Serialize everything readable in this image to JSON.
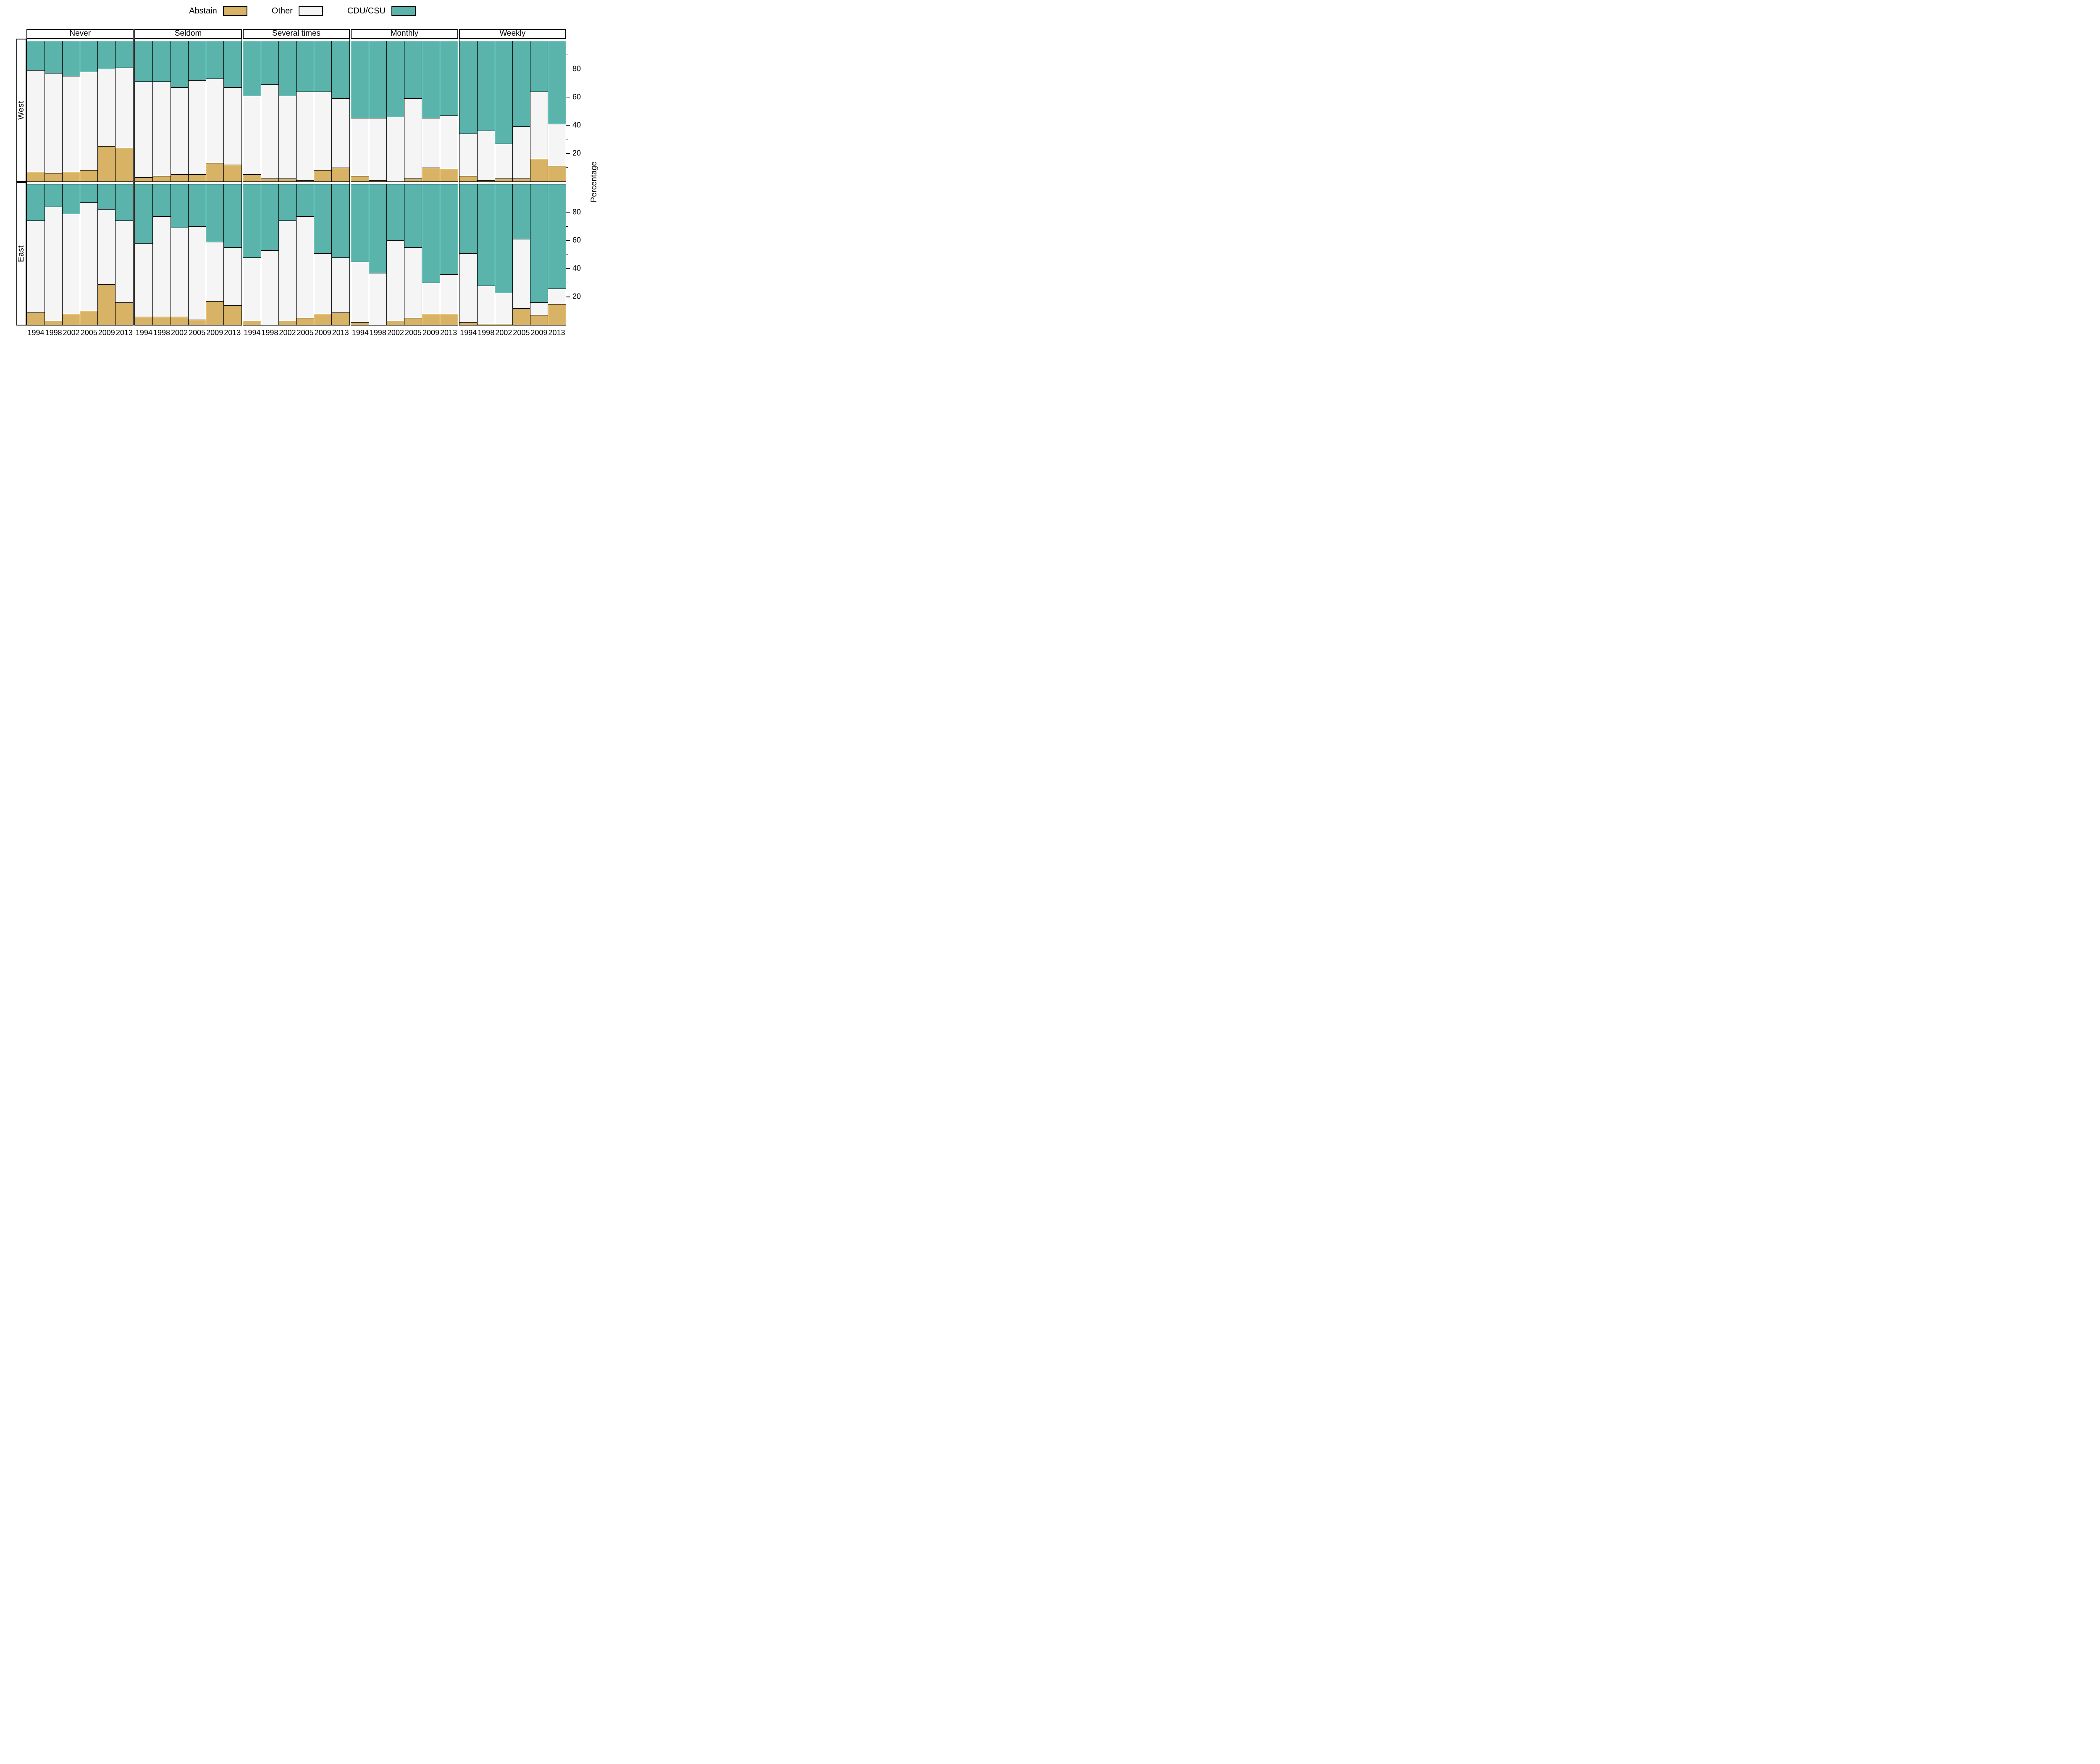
{
  "legend": {
    "items": [
      {
        "label": "Abstain",
        "color": "#d8b365"
      },
      {
        "label": "Other",
        "color": "#f5f5f5"
      },
      {
        "label": "CDU/CSU",
        "color": "#5ab4ac"
      }
    ]
  },
  "chart_data": {
    "type": "bar",
    "stacked": true,
    "unit": "percent",
    "title": "",
    "xlabel": "",
    "ylabel": "Percentage",
    "ylim": [
      0,
      100
    ],
    "yticks_major": [
      20,
      40,
      60,
      80
    ],
    "yticks_minor": [
      10,
      30,
      50,
      70,
      90
    ],
    "grid": false,
    "legend_position": "top",
    "col_facets": [
      "Never",
      "Seldom",
      "Several times",
      "Monthly",
      "Weekly"
    ],
    "row_facets": [
      "West",
      "East"
    ],
    "categories": [
      "1994",
      "1998",
      "2002",
      "2005",
      "2009",
      "2013"
    ],
    "series_order": [
      "Abstain",
      "Other",
      "CDU/CSU"
    ],
    "colors": {
      "Abstain": "#d8b365",
      "Other": "#f5f5f5",
      "CDU/CSU": "#5ab4ac"
    },
    "values_note": "Each triple is [Abstain, Other, CDU/CSU] in percent for years 1994,1998,2002,2005,2009,2013; stacks sum to 100.",
    "values": {
      "West": {
        "Never": [
          [
            7,
            72,
            21
          ],
          [
            6,
            71,
            23
          ],
          [
            7,
            68,
            25
          ],
          [
            8,
            70,
            22
          ],
          [
            25,
            55,
            20
          ],
          [
            24,
            57,
            19
          ]
        ],
        "Seldom": [
          [
            3,
            68,
            29
          ],
          [
            4,
            67,
            29
          ],
          [
            5,
            62,
            33
          ],
          [
            5,
            67,
            28
          ],
          [
            13,
            60,
            27
          ],
          [
            12,
            55,
            33
          ]
        ],
        "Several times": [
          [
            5,
            56,
            39
          ],
          [
            2,
            67,
            31
          ],
          [
            2,
            59,
            39
          ],
          [
            1,
            63,
            36
          ],
          [
            8,
            56,
            36
          ],
          [
            10,
            49,
            41
          ]
        ],
        "Monthly": [
          [
            4,
            41,
            55
          ],
          [
            1,
            44,
            55
          ],
          [
            0,
            46,
            54
          ],
          [
            2,
            57,
            41
          ],
          [
            10,
            35,
            55
          ],
          [
            9,
            38,
            53
          ]
        ],
        "Weekly": [
          [
            4,
            30,
            66
          ],
          [
            1,
            35,
            64
          ],
          [
            2,
            25,
            73
          ],
          [
            2,
            37,
            61
          ],
          [
            16,
            48,
            36
          ],
          [
            11,
            30,
            59
          ]
        ]
      },
      "East": {
        "Never": [
          [
            9,
            65,
            26
          ],
          [
            3,
            81,
            16
          ],
          [
            8,
            71,
            21
          ],
          [
            10,
            77,
            13
          ],
          [
            29,
            53,
            18
          ],
          [
            16,
            58,
            26
          ]
        ],
        "Seldom": [
          [
            6,
            52,
            42
          ],
          [
            6,
            71,
            23
          ],
          [
            6,
            63,
            31
          ],
          [
            4,
            66,
            30
          ],
          [
            17,
            42,
            41
          ],
          [
            14,
            41,
            45
          ]
        ],
        "Several times": [
          [
            3,
            45,
            52
          ],
          [
            0,
            53,
            47
          ],
          [
            3,
            71,
            26
          ],
          [
            5,
            72,
            23
          ],
          [
            8,
            43,
            49
          ],
          [
            9,
            39,
            52
          ]
        ],
        "Monthly": [
          [
            2,
            43,
            55
          ],
          [
            0,
            37,
            63
          ],
          [
            3,
            57,
            40
          ],
          [
            5,
            50,
            45
          ],
          [
            8,
            22,
            70
          ],
          [
            8,
            28,
            64
          ]
        ],
        "Weekly": [
          [
            2,
            49,
            49
          ],
          [
            1,
            27,
            72
          ],
          [
            1,
            22,
            77
          ],
          [
            12,
            49,
            39
          ],
          [
            7,
            9,
            84
          ],
          [
            15,
            11,
            74
          ]
        ]
      }
    }
  }
}
